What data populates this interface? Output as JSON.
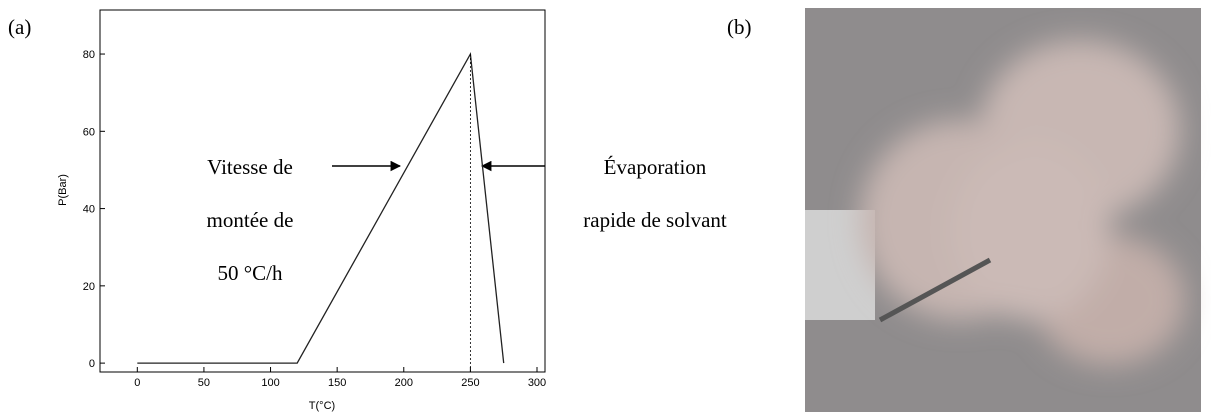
{
  "panel_labels": [
    "(a)",
    "(b)"
  ],
  "chart_data": {
    "type": "line",
    "x_label": "T(°C)",
    "y_label": "P(Bar)",
    "x": [
      0,
      120,
      250,
      275
    ],
    "series": [
      {
        "color": "#222222",
        "values": [
          0,
          0,
          80,
          0
        ]
      }
    ],
    "xlim": [
      -28,
      306
    ],
    "ylim": [
      -2.3,
      91.4
    ],
    "xticks": [
      0,
      50,
      100,
      150,
      200,
      250,
      300
    ],
    "yticks": [
      0,
      20,
      40,
      60,
      80
    ],
    "annotations": [
      "Vitesse de",
      "montée de",
      "50 °C/h",
      "Évaporation",
      "rapide de solvant"
    ]
  }
}
